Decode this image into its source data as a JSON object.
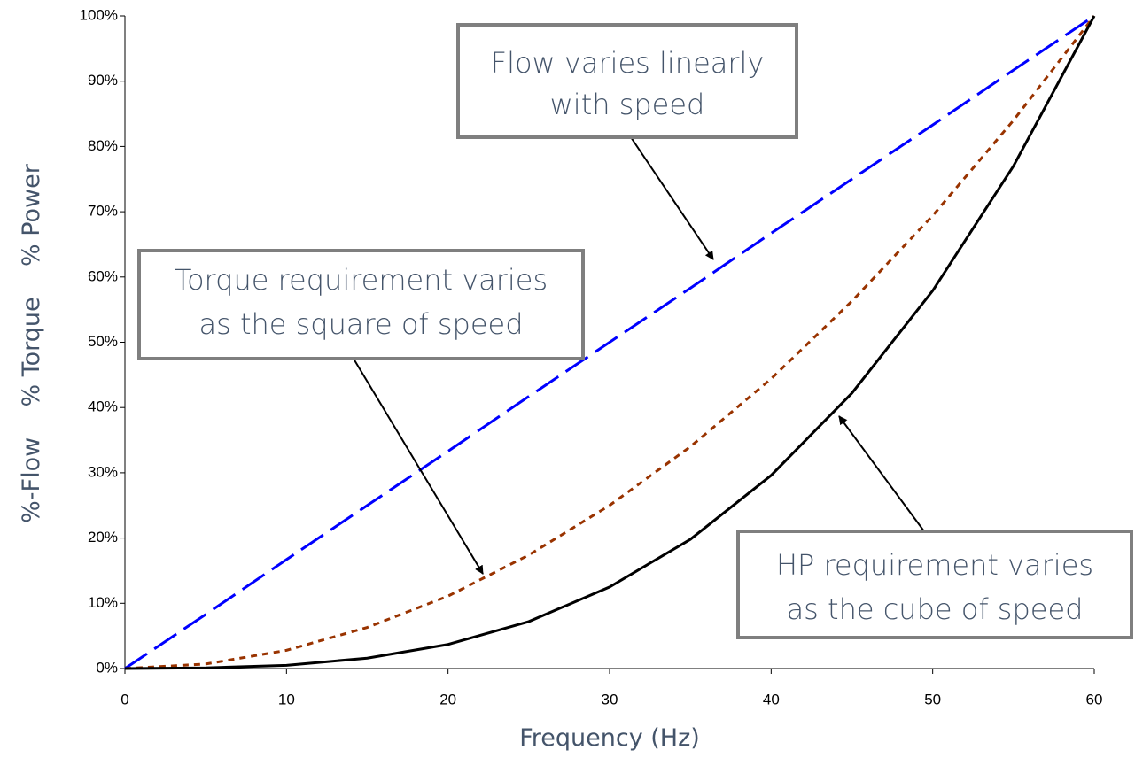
{
  "chart_data": {
    "type": "line",
    "x": [
      0,
      5,
      10,
      15,
      20,
      25,
      30,
      35,
      40,
      45,
      50,
      55,
      60
    ],
    "series": [
      {
        "color": "#0000ff",
        "style": "dashed",
        "values": [
          0,
          8.3,
          16.7,
          25,
          33.3,
          41.7,
          50,
          58.3,
          66.7,
          75,
          83.3,
          91.7,
          100
        ]
      },
      {
        "color": "#993300",
        "style": "dotted",
        "values": [
          0,
          0.7,
          2.8,
          6.3,
          11.1,
          17.4,
          25,
          34,
          44.4,
          56.3,
          69.4,
          84,
          100
        ]
      },
      {
        "color": "#000000",
        "style": "solid",
        "values": [
          0,
          0.1,
          0.5,
          1.6,
          3.7,
          7.2,
          12.5,
          19.8,
          29.6,
          42.2,
          57.9,
          77,
          100
        ]
      }
    ],
    "xlim": [
      0,
      60
    ],
    "xticks": [
      0,
      10,
      20,
      30,
      40,
      50,
      60
    ],
    "ylim": [
      0,
      100
    ],
    "yticks": [
      {
        "value": 0,
        "label": "0%"
      },
      {
        "value": 10,
        "label": "10%"
      },
      {
        "value": 20,
        "label": "20%"
      },
      {
        "value": 30,
        "label": "30%"
      },
      {
        "value": 40,
        "label": "40%"
      },
      {
        "value": 50,
        "label": "50%"
      },
      {
        "value": 60,
        "label": "60%"
      },
      {
        "value": 70,
        "label": "70%"
      },
      {
        "value": 80,
        "label": "80%"
      },
      {
        "value": 90,
        "label": "90%"
      },
      {
        "value": 100,
        "label": "100%"
      }
    ],
    "xlabel": "Frequency (Hz)",
    "ylabel": "%-Flow    % Torque    % Power",
    "grid": false,
    "annotations": [
      {
        "lines": [
          "Flow varies linearly",
          "with speed"
        ]
      },
      {
        "lines": [
          "Torque requirement varies",
          "as the square of speed"
        ]
      },
      {
        "lines": [
          "HP requirement varies",
          "as the cube of speed"
        ]
      }
    ]
  }
}
